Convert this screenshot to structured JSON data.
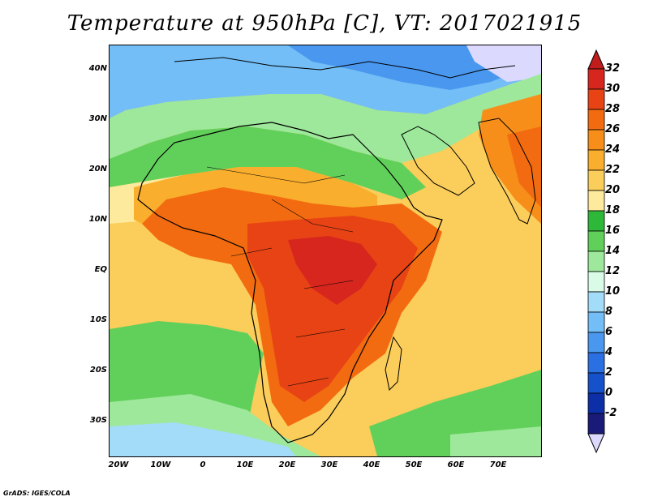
{
  "title": "Temperature at 950hPa [C], VT: 2017021915",
  "credit": "GrADS: IGES/COLA",
  "lat_ticks": [
    {
      "label": "40N",
      "value": 40
    },
    {
      "label": "30N",
      "value": 30
    },
    {
      "label": "20N",
      "value": 20
    },
    {
      "label": "10N",
      "value": 10
    },
    {
      "label": "EQ",
      "value": 0
    },
    {
      "label": "10S",
      "value": -10
    },
    {
      "label": "20S",
      "value": -20
    },
    {
      "label": "30S",
      "value": -30
    }
  ],
  "lon_ticks": [
    {
      "label": "20W",
      "value": -20
    },
    {
      "label": "10W",
      "value": -10
    },
    {
      "label": "0",
      "value": 0
    },
    {
      "label": "10E",
      "value": 10
    },
    {
      "label": "20E",
      "value": 20
    },
    {
      "label": "30E",
      "value": 30
    },
    {
      "label": "40E",
      "value": 40
    },
    {
      "label": "50E",
      "value": 50
    },
    {
      "label": "60E",
      "value": 60
    },
    {
      "label": "70E",
      "value": 70
    }
  ],
  "map_extent": {
    "lon_min": -22,
    "lon_max": 80,
    "lat_min": -36,
    "lat_max": 45
  },
  "colorbar": {
    "labels": [
      "32",
      "30",
      "28",
      "26",
      "24",
      "22",
      "20",
      "18",
      "16",
      "14",
      "12",
      "10",
      "8",
      "6",
      "4",
      "2",
      "0",
      "-2"
    ],
    "colors": [
      "#d7261e",
      "#e84315",
      "#f36b10",
      "#f78e1a",
      "#f9ae2d",
      "#fbcd5a",
      "#fdea9d",
      "#2eb83a",
      "#61d05b",
      "#9de89a",
      "#d9fbe8",
      "#a3dcf8",
      "#73bef6",
      "#4a97ef",
      "#2b70e3",
      "#1451cb",
      "#0c2fa8",
      "#1a1a78"
    ],
    "top_arrow_color": "#c11d1d",
    "bottom_arrow_color": "#dcd9ff"
  }
}
